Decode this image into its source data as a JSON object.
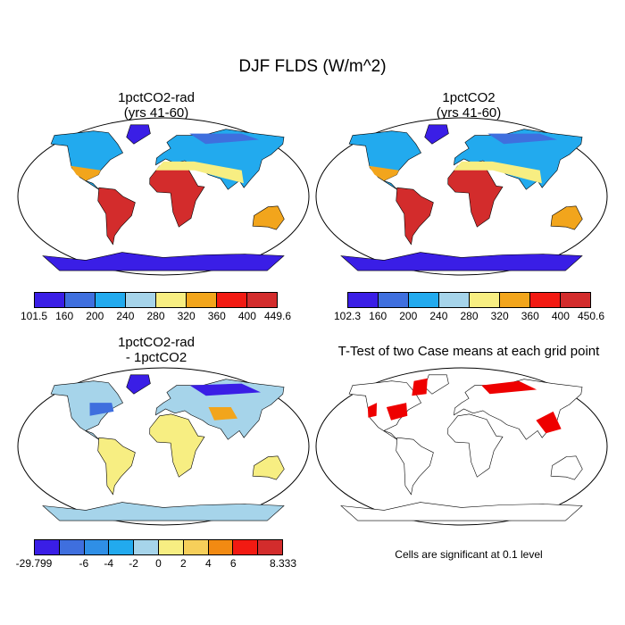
{
  "title": "DJF FLDS (W/m^2)",
  "panels": [
    {
      "id": "tl",
      "title_line1": "1pctCO2-rad",
      "title_line2": "(yrs 41-60)"
    },
    {
      "id": "tr",
      "title_line1": "1pctCO2",
      "title_line2": "(yrs 41-60)"
    },
    {
      "id": "bl",
      "title_line1": "1pctCO2-rad",
      "title_line2": "- 1pctCO2"
    },
    {
      "id": "br",
      "title_line1": "T-Test of two Case means at each grid point",
      "title_line2": ""
    }
  ],
  "colorbars": [
    {
      "id": "cb1",
      "colors": [
        "#3a1ee6",
        "#3f6fde",
        "#22aaee",
        "#a6d4ea",
        "#f7ee82",
        "#f2a51c",
        "#f21a12",
        "#d32c2c"
      ],
      "labels": [
        "101.5",
        "160",
        "200",
        "240",
        "280",
        "320",
        "360",
        "400",
        "449.6"
      ]
    },
    {
      "id": "cb2",
      "colors": [
        "#3a1ee6",
        "#3f6fde",
        "#22aaee",
        "#a6d4ea",
        "#f7ee82",
        "#f2a51c",
        "#f21a12",
        "#d32c2c"
      ],
      "labels": [
        "102.3",
        "160",
        "200",
        "240",
        "280",
        "320",
        "360",
        "400",
        "450.6"
      ]
    },
    {
      "id": "cb3",
      "colors": [
        "#3a1ee6",
        "#3f6fde",
        "#2f8fe6",
        "#22aaee",
        "#a6d4ea",
        "#f7ee82",
        "#f6cf5a",
        "#f28a12",
        "#f21a12",
        "#d32c2c"
      ],
      "labels": [
        "-29.799",
        "-6",
        "-4",
        "-2",
        "0",
        "2",
        "4",
        "6",
        "8.333"
      ],
      "label_boundaries": [
        0,
        2,
        3,
        4,
        5,
        6,
        7,
        8,
        10
      ]
    }
  ],
  "significance_note": "Cells are significant at 0.1 level",
  "map_colors": {
    "ocean": "#ffffff",
    "coast": "#000000",
    "significant": "#ee0000"
  }
}
